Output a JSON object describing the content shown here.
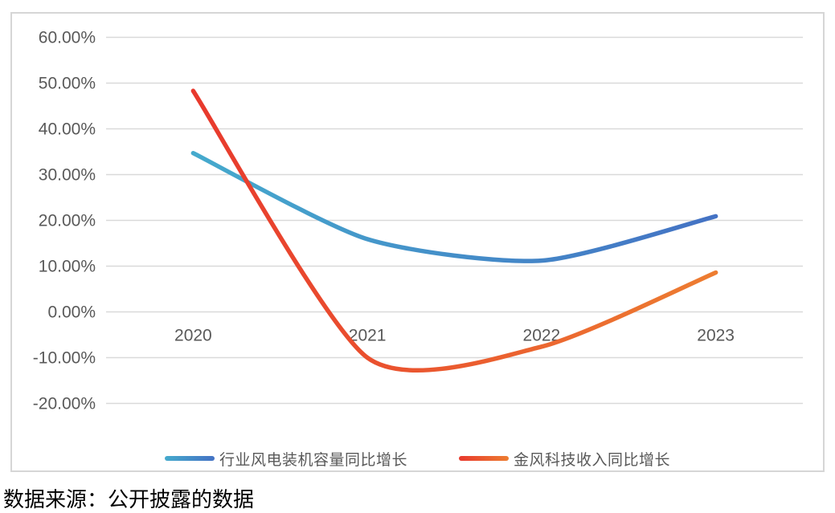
{
  "caption": "数据来源：公开披露的数据",
  "chart_data": {
    "type": "line",
    "title": "",
    "xlabel": "",
    "ylabel": "",
    "categories": [
      "2020",
      "2021",
      "2022",
      "2023"
    ],
    "series": [
      {
        "name": "行业风电装机容量同比增长",
        "values": [
          34.7,
          15.9,
          11.2,
          20.9
        ],
        "color_start": "#45aacd",
        "color_end": "#4472c4"
      },
      {
        "name": "金风科技收入同比增长",
        "values": [
          48.3,
          -10.0,
          -7.6,
          8.6
        ],
        "color_start": "#e8392d",
        "color_end": "#ed7d31"
      }
    ],
    "ylim": [
      -20,
      60
    ],
    "y_axis": {
      "values": [
        60,
        50,
        40,
        30,
        20,
        10,
        0,
        -10,
        -20
      ],
      "labels": [
        "60.00%",
        "50.00%",
        "40.00%",
        "30.00%",
        "20.00%",
        "10.00%",
        "0.00%",
        "-10.00%",
        "-20.00%"
      ]
    },
    "grid": true,
    "smooth": true,
    "legend_position": "bottom"
  },
  "colors": {
    "grid_line": "#d9d9d9",
    "axis_text": "#595959",
    "frame_border": "#d6d6d6",
    "caption_text": "#000000"
  }
}
